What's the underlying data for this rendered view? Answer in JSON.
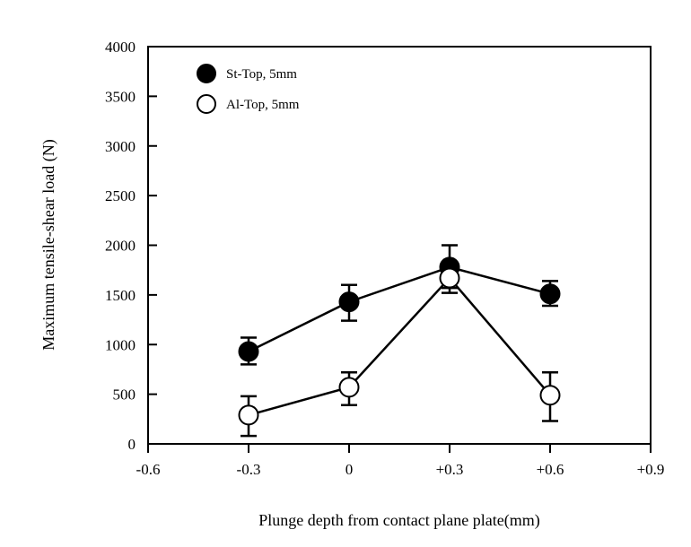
{
  "chart_data": {
    "type": "line",
    "title": "",
    "xlabel": "Plunge depth from contact plane plate(mm)",
    "ylabel": "Maximum tensile-shear load (N)",
    "xlim": [
      -0.6,
      0.9
    ],
    "ylim": [
      0,
      4000
    ],
    "x_tick_values": [
      -0.6,
      -0.3,
      0,
      0.3,
      0.6,
      0.9
    ],
    "x_tick_labels": [
      "-0.6",
      "-0.3",
      "0",
      "+0.3",
      "+0.6",
      "+0.9"
    ],
    "y_tick_values": [
      0,
      500,
      1000,
      1500,
      2000,
      2500,
      3000,
      3500,
      4000
    ],
    "y_tick_labels": [
      "0",
      "500",
      "1000",
      "1500",
      "2000",
      "2500",
      "3000",
      "3500",
      "4000"
    ],
    "grid": false,
    "legend_position": "top-left",
    "series": [
      {
        "name": "St-Top, 5mm",
        "marker": "filled-circle",
        "color": "#000000",
        "x": [
          -0.3,
          0,
          0.3,
          0.6
        ],
        "y": [
          930,
          1430,
          1780,
          1510
        ],
        "error_low": [
          800,
          1240,
          1570,
          1390
        ],
        "error_high": [
          1070,
          1600,
          2000,
          1640
        ]
      },
      {
        "name": "Al-Top, 5mm",
        "marker": "open-circle",
        "color": "#000000",
        "x": [
          -0.3,
          0,
          0.3,
          0.6
        ],
        "y": [
          290,
          570,
          1670,
          490
        ],
        "error_low": [
          80,
          390,
          1520,
          230
        ],
        "error_high": [
          480,
          720,
          1700,
          720
        ]
      }
    ]
  }
}
